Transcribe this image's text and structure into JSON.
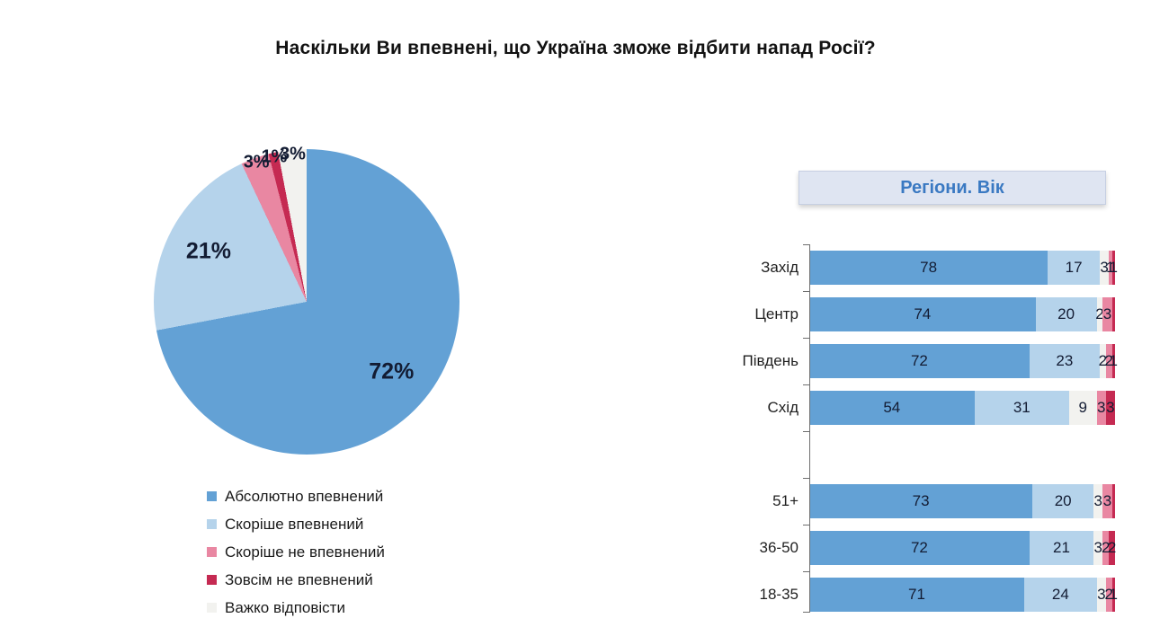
{
  "page": {
    "title": "Наскільки Ви впевнені, що Україна зможе відбити напад Росії?"
  },
  "colors": {
    "absolutely_confident": "#63a1d5",
    "rather_confident": "#b5d3eb",
    "hard_to_answer": "#f2f2ef",
    "rather_not_confident": "#e987a2",
    "not_at_all_confident": "#c52a52",
    "header_text": "#3a79c2",
    "header_bg": "#dfe5f2",
    "value_text": "#131c33"
  },
  "chart_data": [
    {
      "type": "pie",
      "direction": "clockwise",
      "start_angle_deg": 0,
      "slices": [
        {
          "label": "Абсолютно впевнений",
          "value": 72,
          "display": "72%",
          "color": "#63a1d5"
        },
        {
          "label": "Скоріше впевнений",
          "value": 21,
          "display": "21%",
          "color": "#b5d3eb"
        },
        {
          "label": "Скоріше не впевнений",
          "value": 3,
          "display": "3%",
          "color": "#e987a2"
        },
        {
          "label": "Зовсім не впевнений",
          "value": 1,
          "display": "1%",
          "color": "#c52a52"
        },
        {
          "label": "Важко відповісти",
          "value": 3,
          "display": "3%",
          "color": "#f2f2ef"
        }
      ],
      "legend_position": "bottom-left"
    },
    {
      "type": "bar",
      "orientation": "horizontal-stacked",
      "header": "Регіони. Вік",
      "xlim": [
        0,
        100
      ],
      "segment_keys": [
        "Абсолютно впевнений",
        "Скоріше впевнений",
        "Важко відповісти",
        "Скоріше не впевнений",
        "Зовсім не впевнений"
      ],
      "segment_colors": [
        "#63a1d5",
        "#b5d3eb",
        "#f2f2ef",
        "#e987a2",
        "#c52a52"
      ],
      "rows": [
        {
          "label": "Захід",
          "values": [
            78,
            17,
            3,
            1,
            1
          ],
          "labels": [
            "78",
            "17",
            "3",
            "1",
            "1"
          ]
        },
        {
          "label": "Центр",
          "values": [
            74,
            20,
            2,
            3,
            1
          ],
          "labels": [
            "74",
            "20",
            "2",
            "3",
            ""
          ]
        },
        {
          "label": "Південь",
          "values": [
            72,
            23,
            2,
            2,
            1
          ],
          "labels": [
            "72",
            "23",
            "2",
            "2",
            "1"
          ]
        },
        {
          "label": "Схід",
          "values": [
            54,
            31,
            9,
            3,
            3
          ],
          "labels": [
            "54",
            "31",
            "9",
            "3",
            "3"
          ]
        },
        {
          "label": "",
          "values": [],
          "labels": []
        },
        {
          "label": "51+",
          "values": [
            73,
            20,
            3,
            3,
            1
          ],
          "labels": [
            "73",
            "20",
            "3",
            "3",
            ""
          ]
        },
        {
          "label": "36-50",
          "values": [
            72,
            21,
            3,
            2,
            2
          ],
          "labels": [
            "72",
            "21",
            "3",
            "2",
            "2"
          ]
        },
        {
          "label": "18-35",
          "values": [
            71,
            24,
            3,
            2,
            1
          ],
          "labels": [
            "71",
            "24",
            "3",
            "2",
            "1"
          ]
        }
      ]
    }
  ]
}
